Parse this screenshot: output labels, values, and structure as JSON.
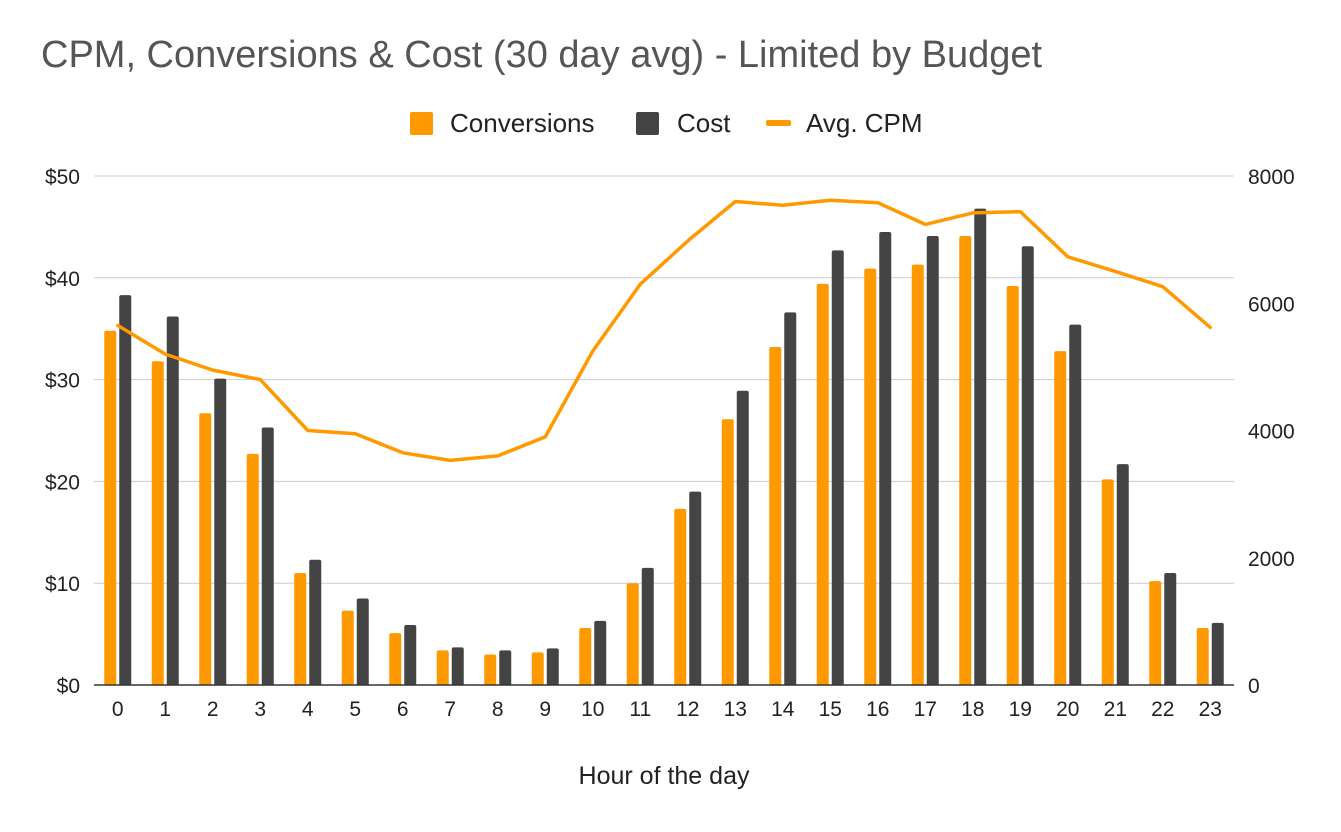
{
  "chart_data": {
    "type": "bar",
    "title": "CPM, Conversions & Cost (30 day avg) - Limited by Budget",
    "xlabel": "Hour of the day",
    "ylabel": "",
    "categories": [
      "0",
      "1",
      "2",
      "3",
      "4",
      "5",
      "6",
      "7",
      "8",
      "9",
      "10",
      "11",
      "12",
      "13",
      "14",
      "15",
      "16",
      "17",
      "18",
      "19",
      "20",
      "21",
      "22",
      "23"
    ],
    "series": [
      {
        "name": "Conversions",
        "type": "bar",
        "axis": "left",
        "color": "#ff9900",
        "values": [
          34.8,
          31.8,
          26.7,
          22.7,
          11.0,
          7.3,
          5.1,
          3.4,
          3.0,
          3.2,
          5.6,
          10.0,
          17.3,
          26.1,
          33.2,
          39.4,
          40.9,
          41.3,
          44.1,
          39.2,
          32.8,
          20.2,
          10.2,
          5.6
        ]
      },
      {
        "name": "Cost",
        "type": "bar",
        "axis": "left",
        "color": "#444444",
        "values": [
          38.3,
          36.2,
          30.1,
          25.3,
          12.3,
          8.5,
          5.9,
          3.7,
          3.4,
          3.6,
          6.3,
          11.5,
          19.0,
          28.9,
          36.6,
          42.7,
          44.5,
          44.1,
          46.8,
          43.1,
          35.4,
          21.7,
          11.0,
          6.1
        ]
      },
      {
        "name": "Avg. CPM",
        "type": "line",
        "axis": "right",
        "color": "#ff9900",
        "values": [
          5650,
          5200,
          4950,
          4800,
          4000,
          3950,
          3650,
          3530,
          3600,
          3900,
          5250,
          6300,
          6980,
          7600,
          7540,
          7620,
          7580,
          7240,
          7420,
          7440,
          6730,
          6500,
          6260,
          5620
        ]
      }
    ],
    "y_left": {
      "ylim": [
        0,
        50
      ],
      "ticks": [
        "$0",
        "$10",
        "$20",
        "$30",
        "$40",
        "$50"
      ]
    },
    "y_right": {
      "ylim": [
        0,
        8000
      ],
      "ticks": [
        "0",
        "2000",
        "4000",
        "6000",
        "8000"
      ]
    },
    "grid": true,
    "legend_position": "top-center"
  }
}
